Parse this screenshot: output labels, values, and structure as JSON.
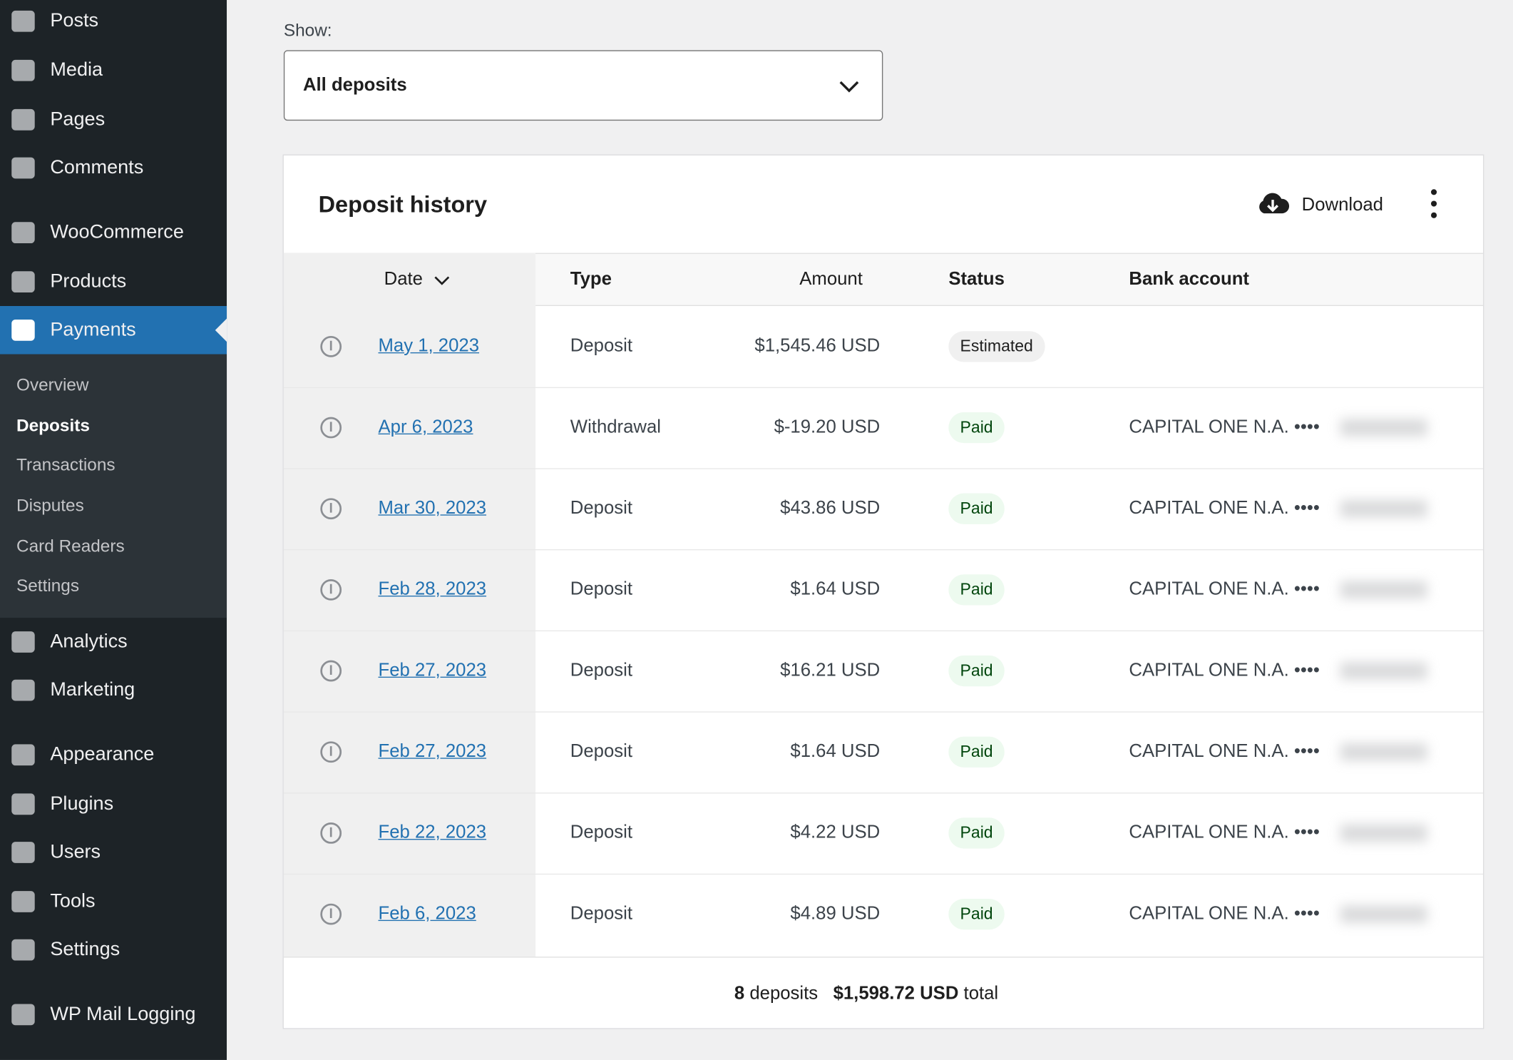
{
  "sidebar": {
    "top": [
      "Posts",
      "Media",
      "Pages",
      "Comments",
      "WooCommerce",
      "Products",
      "Payments"
    ],
    "submenu": [
      "Overview",
      "Deposits",
      "Transactions",
      "Disputes",
      "Card Readers",
      "Settings"
    ],
    "bottom": [
      "Analytics",
      "Marketing",
      "Appearance",
      "Plugins",
      "Users",
      "Tools",
      "Settings",
      "WP Mail Logging"
    ]
  },
  "filter": {
    "label": "Show:",
    "value": "All deposits"
  },
  "card": {
    "title": "Deposit history",
    "download": "Download"
  },
  "table": {
    "columns": [
      "Date",
      "Type",
      "Amount",
      "Status",
      "Bank account"
    ],
    "rows": [
      {
        "date": "May 1, 2023",
        "type": "Deposit",
        "amount": "$1,545.46 USD",
        "status": "Estimated",
        "bank": null
      },
      {
        "date": "Apr 6, 2023",
        "type": "Withdrawal",
        "amount": "$-19.20 USD",
        "status": "Paid",
        "bank": "CAPITAL ONE N.A. ••••"
      },
      {
        "date": "Mar 30, 2023",
        "type": "Deposit",
        "amount": "$43.86 USD",
        "status": "Paid",
        "bank": "CAPITAL ONE N.A. ••••"
      },
      {
        "date": "Feb 28, 2023",
        "type": "Deposit",
        "amount": "$1.64 USD",
        "status": "Paid",
        "bank": "CAPITAL ONE N.A. ••••"
      },
      {
        "date": "Feb 27, 2023",
        "type": "Deposit",
        "amount": "$16.21 USD",
        "status": "Paid",
        "bank": "CAPITAL ONE N.A. ••••"
      },
      {
        "date": "Feb 27, 2023",
        "type": "Deposit",
        "amount": "$1.64 USD",
        "status": "Paid",
        "bank": "CAPITAL ONE N.A. ••••"
      },
      {
        "date": "Feb 22, 2023",
        "type": "Deposit",
        "amount": "$4.22 USD",
        "status": "Paid",
        "bank": "CAPITAL ONE N.A. ••••"
      },
      {
        "date": "Feb 6, 2023",
        "type": "Deposit",
        "amount": "$4.89 USD",
        "status": "Paid",
        "bank": "CAPITAL ONE N.A. ••••"
      }
    ]
  },
  "footer": {
    "count": "8",
    "count_label": "deposits",
    "total": "$1,598.72 USD",
    "total_label": "total"
  }
}
